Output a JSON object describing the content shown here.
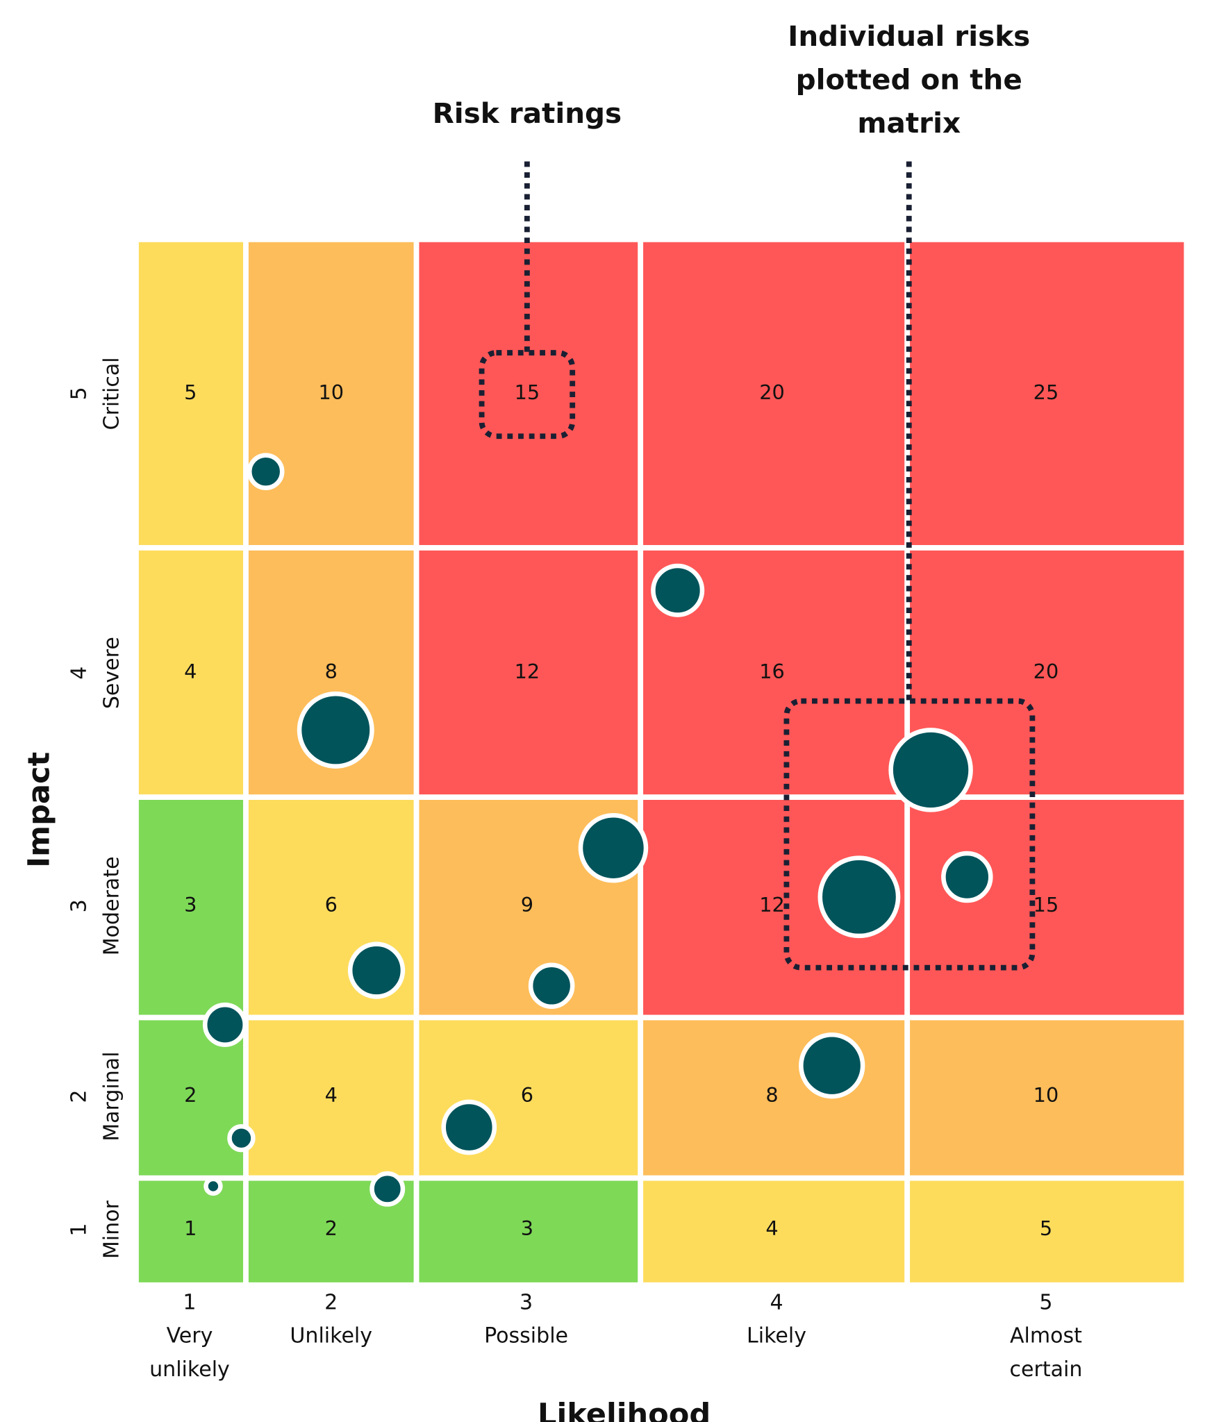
{
  "annotations": {
    "risk_ratings": "Risk ratings",
    "individual_risks": [
      "Individual risks",
      "plotted on the",
      "matrix"
    ]
  },
  "y_axis": {
    "title": "Impact",
    "levels": [
      {
        "number": "5",
        "name": "Critical"
      },
      {
        "number": "4",
        "name": "Severe"
      },
      {
        "number": "3",
        "name": "Moderate"
      },
      {
        "number": "2",
        "name": "Marginal"
      },
      {
        "number": "1",
        "name": "Minor"
      }
    ]
  },
  "x_axis": {
    "title": "Likelihood",
    "levels": [
      {
        "number": "1",
        "name": [
          "Very",
          "unlikely"
        ]
      },
      {
        "number": "2",
        "name": [
          "Unlikely"
        ]
      },
      {
        "number": "3",
        "name": [
          "Possible"
        ]
      },
      {
        "number": "4",
        "name": [
          "Likely"
        ]
      },
      {
        "number": "5",
        "name": [
          "Almost",
          "certain"
        ]
      }
    ]
  },
  "matrix": {
    "rows": [
      [
        "5",
        "10",
        "15",
        "20",
        "25"
      ],
      [
        "4",
        "8",
        "12",
        "16",
        "20"
      ],
      [
        "3",
        "6",
        "9",
        "12",
        "15"
      ],
      [
        "2",
        "4",
        "6",
        "8",
        "10"
      ],
      [
        "1",
        "2",
        "3",
        "4",
        "5"
      ]
    ]
  }
}
